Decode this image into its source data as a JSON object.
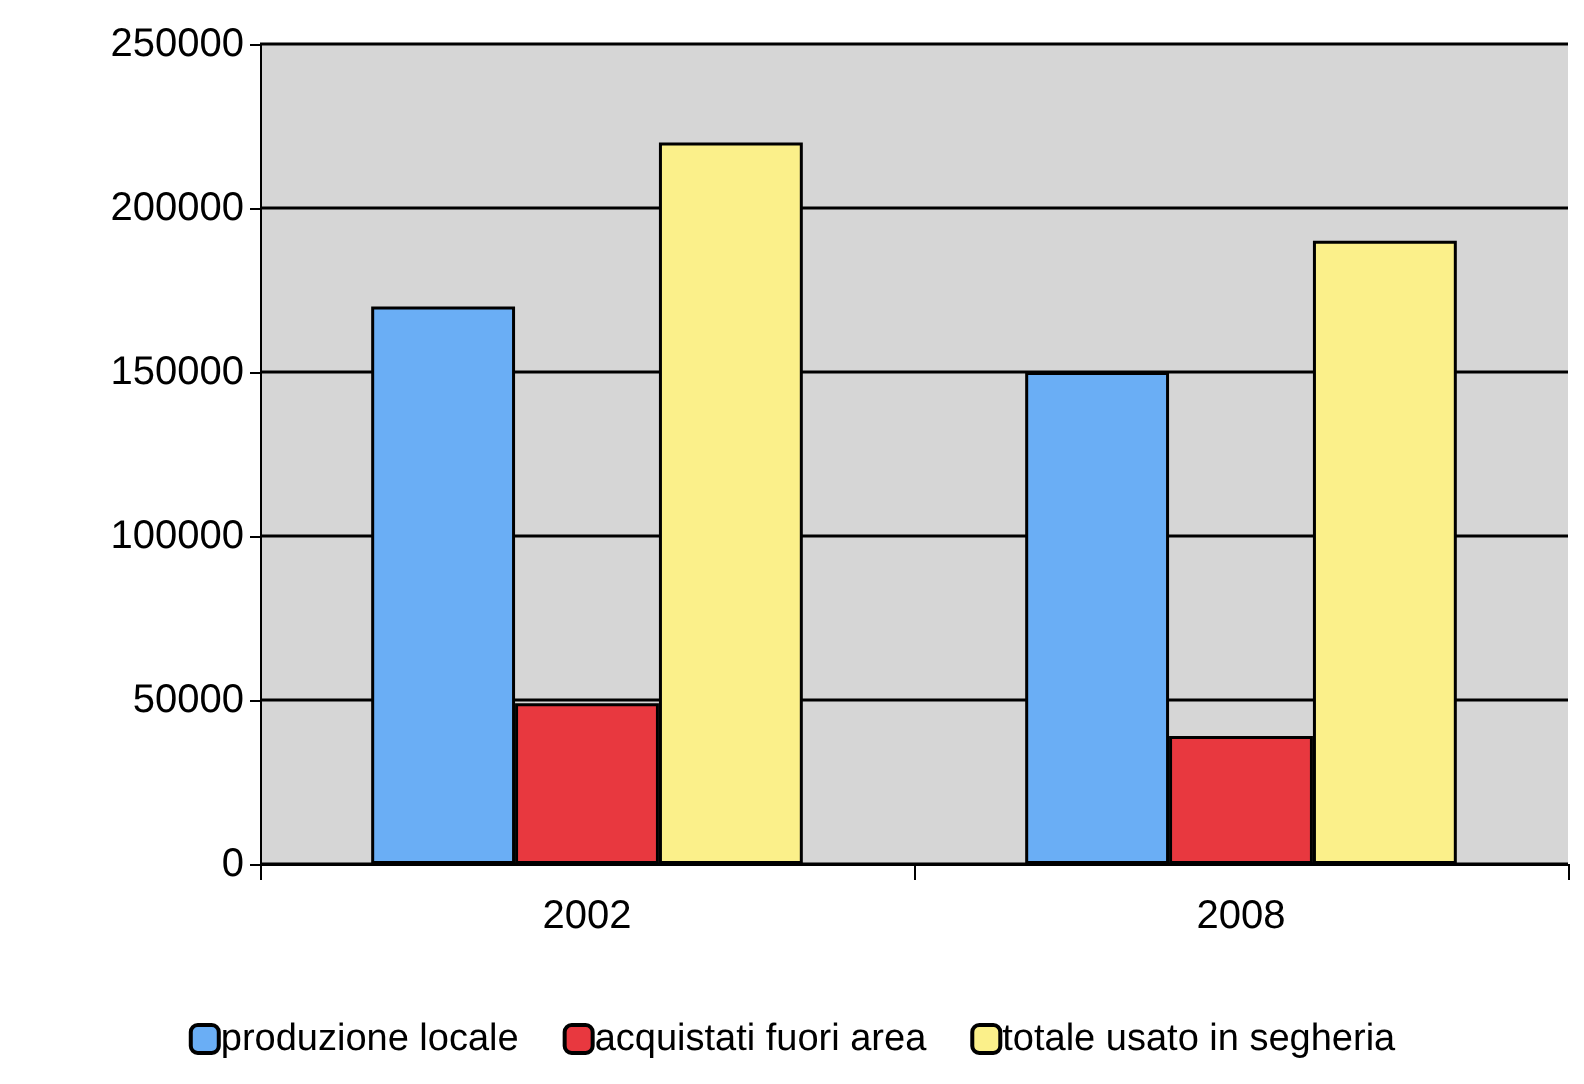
{
  "chart_data": {
    "type": "bar",
    "categories": [
      "2002",
      "2008"
    ],
    "series": [
      {
        "name": "produzione locale",
        "color": "#6aaef5",
        "values": [
          170000,
          150000
        ]
      },
      {
        "name": "acquistati fuori area",
        "color": "#e8383f",
        "values": [
          49000,
          39000
        ]
      },
      {
        "name": "totale usato in segheria",
        "color": "#fbf08a",
        "values": [
          220000,
          190000
        ]
      }
    ],
    "ylim": [
      0,
      250000
    ],
    "yticks": [
      0,
      50000,
      100000,
      150000,
      200000,
      250000
    ],
    "grid": "y",
    "legend": "bottom"
  }
}
